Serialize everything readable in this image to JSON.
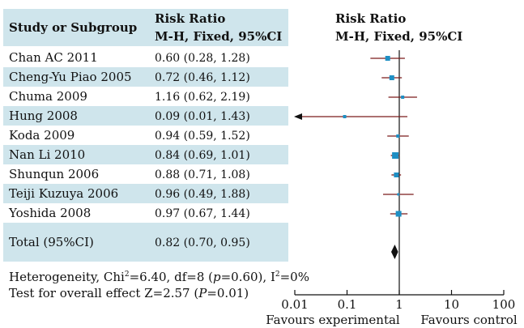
{
  "table": {
    "header": {
      "col1": "Study or Subgroup",
      "col2_line1": "Risk Ratio",
      "col2_line2": "M-H, Fixed, 95%CI",
      "plot_line1": "Risk Ratio",
      "plot_line2": "M-H, Fixed, 95%CI"
    },
    "rows": [
      {
        "study": "Chan AC 2011",
        "rr": "0.60 (0.28, 1.28)"
      },
      {
        "study": "Cheng-Yu Piao 2005",
        "rr": "0.72 (0.46, 1.12)"
      },
      {
        "study": "Chuma 2009",
        "rr": "1.16 (0.62, 2.19)"
      },
      {
        "study": "Hung 2008",
        "rr": "0.09 (0.01, 1.43)"
      },
      {
        "study": "Koda 2009",
        "rr": "0.94 (0.59, 1.52)"
      },
      {
        "study": "Nan Li 2010",
        "rr": "0.84 (0.69, 1.01)"
      },
      {
        "study": "Shunqun 2006",
        "rr": "0.88 (0.71, 1.08)"
      },
      {
        "study": "Teiji Kuzuya 2006",
        "rr": "0.96 (0.49, 1.88)"
      },
      {
        "study": "Yoshida 2008",
        "rr": "0.97 (0.67, 1.44)"
      }
    ],
    "total": {
      "study": "Total (95%CI)",
      "rr": "0.82 (0.70, 0.95)"
    }
  },
  "footer": {
    "heterogeneity_pre": "Heterogeneity, Chi",
    "heterogeneity_sup": "2",
    "heterogeneity_mid": "=6.40, df=8 (",
    "heterogeneity_p": "p",
    "heterogeneity_mid2": "=0.60), I",
    "heterogeneity_sup2": "2",
    "heterogeneity_end": "=0%",
    "overall_pre": "Test for overall effect Z=2.57 (",
    "overall_p": "P",
    "overall_end": "=0.01)"
  },
  "colors": {
    "band": "#cfe5ec",
    "marker": "#1e8fc4",
    "ci_line": "#7a1a1a",
    "axis": "#111111"
  },
  "chart_data": {
    "type": "forest",
    "xscale": "log",
    "xlim": [
      0.01,
      100
    ],
    "xticks": [
      0.01,
      0.1,
      1,
      10,
      100
    ],
    "xtick_labels": [
      "0.01",
      "0.1",
      "1",
      "10",
      "100"
    ],
    "xlabel_left": "Favours experimental",
    "xlabel_right": "Favours control",
    "studies": [
      {
        "name": "Chan AC 2011",
        "rr": 0.6,
        "lo": 0.28,
        "hi": 1.28
      },
      {
        "name": "Cheng-Yu Piao 2005",
        "rr": 0.72,
        "lo": 0.46,
        "hi": 1.12
      },
      {
        "name": "Chuma 2009",
        "rr": 1.16,
        "lo": 0.62,
        "hi": 2.19
      },
      {
        "name": "Hung 2008",
        "rr": 0.09,
        "lo": 0.01,
        "hi": 1.43,
        "arrow_left": true
      },
      {
        "name": "Koda 2009",
        "rr": 0.94,
        "lo": 0.59,
        "hi": 1.52
      },
      {
        "name": "Nan Li 2010",
        "rr": 0.84,
        "lo": 0.69,
        "hi": 1.01
      },
      {
        "name": "Shunqun 2006",
        "rr": 0.88,
        "lo": 0.71,
        "hi": 1.08
      },
      {
        "name": "Teiji Kuzuya 2006",
        "rr": 0.96,
        "lo": 0.49,
        "hi": 1.88
      },
      {
        "name": "Yoshida 2008",
        "rr": 0.97,
        "lo": 0.67,
        "hi": 1.44
      }
    ],
    "pooled": {
      "name": "Total (95%CI)",
      "rr": 0.82,
      "lo": 0.7,
      "hi": 0.95
    }
  }
}
